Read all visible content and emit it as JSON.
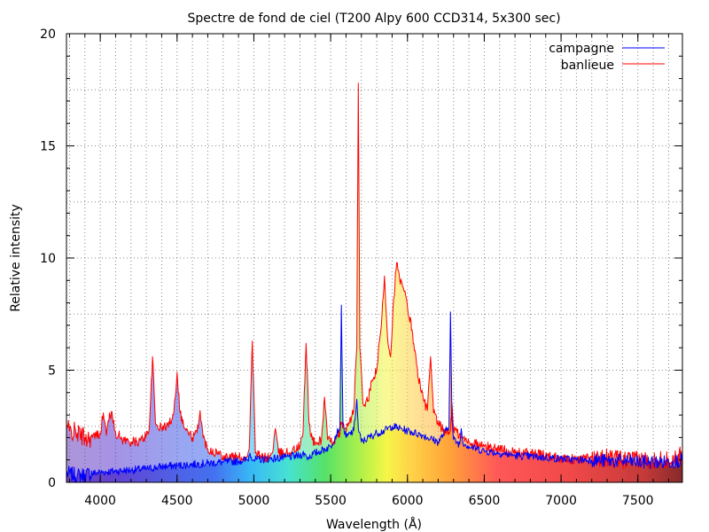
{
  "chart_data": {
    "type": "line",
    "title": "Spectre de fond de ciel (T200 Alpy 600 CCD314, 5x300 sec)",
    "xlabel": "Wavelength (Å)",
    "ylabel": "Relative intensity",
    "xlim": [
      3780,
      7790
    ],
    "ylim": [
      0,
      20
    ],
    "xticks": [
      4000,
      4500,
      5000,
      5500,
      6000,
      6500,
      7000,
      7500
    ],
    "yticks": [
      0,
      5,
      10,
      15,
      20
    ],
    "grid": true,
    "legend_position": "top-right",
    "series": [
      {
        "name": "campagne",
        "color": "#0000ff",
        "x": [
          3780,
          3850,
          3900,
          4000,
          4100,
          4200,
          4300,
          4400,
          4500,
          4600,
          4700,
          4800,
          4900,
          4960,
          4975,
          5000,
          5100,
          5200,
          5300,
          5330,
          5345,
          5400,
          5500,
          5560,
          5570,
          5580,
          5600,
          5650,
          5670,
          5680,
          5700,
          5800,
          5850,
          5900,
          6000,
          6100,
          6200,
          6270,
          6280,
          6290,
          6300,
          6340,
          6350,
          6360,
          6400,
          6500,
          6600,
          6700,
          6800,
          6900,
          7000,
          7100,
          7200,
          7300,
          7400,
          7500,
          7600,
          7700,
          7790
        ],
        "y": [
          0.4,
          0.3,
          0.35,
          0.45,
          0.5,
          0.55,
          0.6,
          0.7,
          0.75,
          0.8,
          0.85,
          0.9,
          0.95,
          1.0,
          1.3,
          1.0,
          1.05,
          1.1,
          1.2,
          1.3,
          1.1,
          1.3,
          1.6,
          2.5,
          7.9,
          2.6,
          2.0,
          2.3,
          3.7,
          2.4,
          1.8,
          2.2,
          2.3,
          2.5,
          2.3,
          2.1,
          1.8,
          2.5,
          7.6,
          2.8,
          1.9,
          1.7,
          2.4,
          1.8,
          1.6,
          1.4,
          1.3,
          1.2,
          1.15,
          1.1,
          1.05,
          1.0,
          1.0,
          0.95,
          0.95,
          0.9,
          0.9,
          0.9,
          1.0
        ]
      },
      {
        "name": "banlieue",
        "color": "#ff0000",
        "x": [
          3780,
          3800,
          3850,
          3900,
          3950,
          4000,
          4020,
          4040,
          4060,
          4080,
          4100,
          4150,
          4200,
          4250,
          4300,
          4320,
          4340,
          4360,
          4400,
          4450,
          4480,
          4500,
          4520,
          4550,
          4600,
          4630,
          4650,
          4670,
          4700,
          4800,
          4900,
          4950,
          4970,
          4990,
          5010,
          5050,
          5100,
          5120,
          5140,
          5160,
          5200,
          5250,
          5300,
          5320,
          5340,
          5360,
          5380,
          5400,
          5440,
          5460,
          5480,
          5500,
          5550,
          5570,
          5590,
          5620,
          5650,
          5670,
          5680,
          5690,
          5710,
          5740,
          5770,
          5800,
          5830,
          5850,
          5870,
          5890,
          5910,
          5930,
          5950,
          5980,
          6000,
          6030,
          6060,
          6090,
          6110,
          6130,
          6150,
          6170,
          6200,
          6250,
          6280,
          6290,
          6300,
          6350,
          6400,
          6500,
          6600,
          6700,
          6800,
          6900,
          7000,
          7100,
          7200,
          7300,
          7400,
          7500,
          7600,
          7700,
          7790
        ],
        "y": [
          2.5,
          2.3,
          2.2,
          2.0,
          2.0,
          2.2,
          3.1,
          2.1,
          3.1,
          2.9,
          2.2,
          1.9,
          1.8,
          1.8,
          2.1,
          2.5,
          5.6,
          2.6,
          2.4,
          2.6,
          3.2,
          4.9,
          3.1,
          2.4,
          2.0,
          2.2,
          3.2,
          2.0,
          1.5,
          1.2,
          1.1,
          1.1,
          1.5,
          6.3,
          1.3,
          1.1,
          1.1,
          1.3,
          2.4,
          1.3,
          1.3,
          1.4,
          1.6,
          2.2,
          6.2,
          2.6,
          1.9,
          1.7,
          1.9,
          3.8,
          1.9,
          1.8,
          2.0,
          2.6,
          2.4,
          2.6,
          3.2,
          6.0,
          17.8,
          6.0,
          3.5,
          3.6,
          4.5,
          5.0,
          7.0,
          9.2,
          6.5,
          5.6,
          8.2,
          9.8,
          9.0,
          8.5,
          7.8,
          6.8,
          5.2,
          4.0,
          3.6,
          3.2,
          5.6,
          3.1,
          2.6,
          2.2,
          2.3,
          3.5,
          2.4,
          2.0,
          1.8,
          1.6,
          1.5,
          1.3,
          1.3,
          1.2,
          1.1,
          1.0,
          1.1,
          1.1,
          1.0,
          1.0,
          1.0,
          1.0,
          1.2
        ]
      }
    ]
  }
}
